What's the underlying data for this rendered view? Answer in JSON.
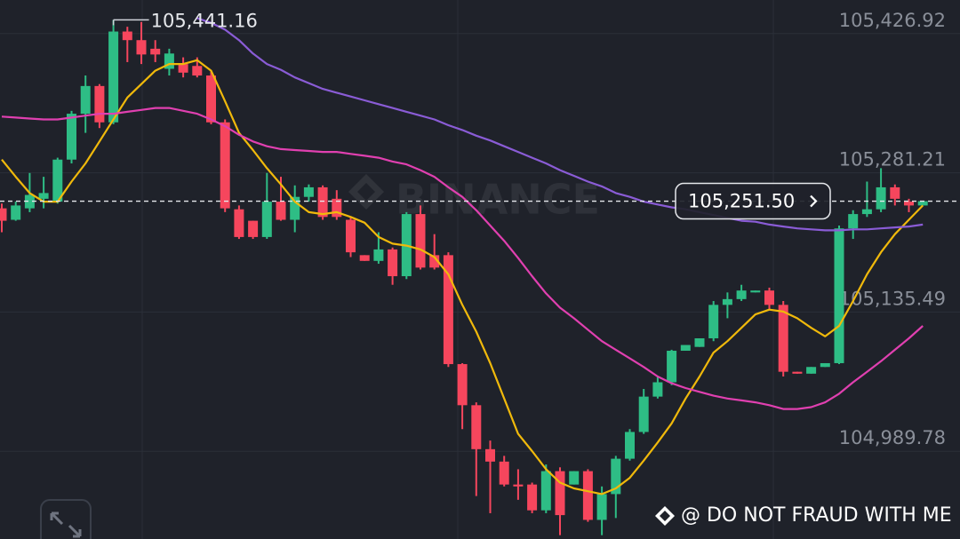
{
  "chart_data": {
    "type": "candlestick",
    "ylim": [
      104898,
      105462
    ],
    "yticks": [
      {
        "value": 105426.92,
        "label": "105,426.92"
      },
      {
        "value": 105281.21,
        "label": "105,281.21"
      },
      {
        "value": 105135.49,
        "label": "105,135.49"
      },
      {
        "value": 104989.78,
        "label": "104,989.78"
      }
    ],
    "grid": true,
    "up_color": "#2ebd85",
    "down_color": "#f6465d",
    "ohlc": {
      "open": [
        105244,
        105232,
        105244,
        105254,
        105251,
        105295,
        105343,
        105372,
        105334,
        105429,
        105420,
        105411,
        105390,
        105395,
        105393,
        105383,
        105334,
        105243,
        105231,
        105214,
        105251,
        105232,
        105256,
        105266,
        105254,
        105232,
        105195,
        105189,
        105201,
        105173,
        105238,
        105195,
        105195,
        105081,
        105038,
        104992,
        104979,
        104955,
        104955,
        104928,
        104969,
        104955,
        104969,
        104918,
        104945,
        104982,
        105010,
        105047,
        105062,
        105095,
        105099,
        105108,
        105143,
        105149,
        105156,
        105158,
        105143,
        105073,
        105071,
        105078,
        105082,
        105223,
        105238,
        105243,
        105266,
        105251,
        105247
      ],
      "high": [
        105249,
        105251,
        105281,
        105277,
        105297,
        105346,
        105383,
        105374,
        105441.16,
        105434,
        105439,
        105420,
        105411,
        105402,
        105402,
        105388,
        105337,
        105247,
        105231,
        105281,
        105277,
        105268,
        105269,
        105268,
        105263,
        105235,
        105195,
        105219,
        105203,
        105240,
        105247,
        105217,
        105198,
        105082,
        105041,
        105001,
        104985,
        104971,
        104957,
        104976,
        104973,
        104969,
        104971,
        104953,
        104985,
        105013,
        105055,
        105068,
        105096,
        105101,
        105108,
        105147,
        105156,
        105164,
        105158,
        105161,
        105147,
        105073,
        105078,
        105082,
        105226,
        105242,
        105272,
        105286,
        105269,
        105254,
        105251.5
      ],
      "low": [
        105219,
        105231,
        105240,
        105244,
        105249,
        105291,
        105323,
        105328,
        105332,
        105397,
        105395,
        105397,
        105383,
        105381,
        105381,
        105332,
        105240,
        105212,
        105212,
        105212,
        105231,
        105219,
        105251,
        105232,
        105232,
        105193,
        105189,
        105186,
        105164,
        105170,
        105180,
        105180,
        105078,
        105013,
        104943,
        104925,
        104953,
        104939,
        104925,
        104925,
        104902,
        104955,
        104916,
        104902,
        104920,
        104980,
        105008,
        105045,
        105059,
        105095,
        105099,
        105105,
        105129,
        105147,
        105156,
        105138,
        105068,
        105071,
        105071,
        105078,
        105081,
        105212,
        105235,
        105240,
        105247,
        105240,
        105247
      ],
      "close": [
        105231,
        105247,
        105258,
        105260,
        105295,
        105343,
        105372,
        105334,
        105429,
        105420,
        105405,
        105405,
        105406,
        105386,
        105383,
        105334,
        105244,
        105214,
        105214,
        105251,
        105232,
        105256,
        105266,
        105235,
        105235,
        105198,
        105189,
        105201,
        105173,
        105238,
        105182,
        105182,
        105081,
        105038,
        104992,
        104979,
        104955,
        104953,
        104928,
        104969,
        104923,
        104969,
        104918,
        104945,
        104982,
        105010,
        105047,
        105062,
        105095,
        105101,
        105108,
        105143,
        105149,
        105158,
        105158,
        105143,
        105073,
        105071,
        105078,
        105082,
        105223,
        105238,
        105243,
        105266,
        105254,
        105247,
        105251.5
      ]
    },
    "lines": [
      {
        "color": "#f0b90b",
        "values": [
          105295,
          105277,
          105260,
          105251,
          105251,
          105272,
          105291,
          105314,
          105337,
          105360,
          105374,
          105388,
          105395,
          105395,
          105399,
          105388,
          105356,
          105323,
          105305,
          105286,
          105269,
          105251,
          105240,
          105238,
          105240,
          105235,
          105229,
          105214,
          105207,
          105205,
          105201,
          105193,
          105175,
          105143,
          105115,
          105082,
          105045,
          105008,
          104990,
          104971,
          104957,
          104951,
          104948,
          104945,
          104951,
          104962,
          104980,
          104999,
          105019,
          105045,
          105068,
          105093,
          105105,
          105119,
          105133,
          105138,
          105136,
          105129,
          105119,
          105110,
          105121,
          105147,
          105175,
          105198,
          105217,
          105232,
          105247
        ]
      },
      {
        "color": "#e040b0",
        "values": [
          105340,
          105339,
          105338,
          105337,
          105337,
          105339,
          105341,
          105343,
          105343,
          105345,
          105347,
          105349,
          105349,
          105346,
          105343,
          105337,
          105330,
          105321,
          105314,
          105309,
          105306,
          105305,
          105304,
          105303,
          105303,
          105301,
          105299,
          105297,
          105293,
          105290,
          105284,
          105277,
          105266,
          105256,
          105242,
          105226,
          105210,
          105192,
          105173,
          105155,
          105140,
          105129,
          105117,
          105105,
          105096,
          105087,
          105078,
          105068,
          105061,
          105056,
          105052,
          105048,
          105045,
          105043,
          105041,
          105038,
          105034,
          105034,
          105036,
          105041,
          105050,
          105062,
          105073,
          105084,
          105096,
          105108,
          105121
        ]
      },
      {
        "color": "#8a5cd6",
        "values": [
          null,
          null,
          null,
          null,
          null,
          null,
          null,
          null,
          null,
          null,
          null,
          null,
          null,
          null,
          105443,
          105438,
          105431,
          105420,
          105406,
          105395,
          105389,
          105381,
          105375,
          105369,
          105365,
          105361,
          105357,
          105353,
          105349,
          105345,
          105341,
          105337,
          105331,
          105326,
          105320,
          105315,
          105309,
          105303,
          105297,
          105291,
          105284,
          105278,
          105272,
          105267,
          105260,
          105256,
          105251,
          105248,
          105245,
          105243,
          105240,
          105237,
          105234,
          105231,
          105230,
          105227,
          105225,
          105223,
          105222,
          105221,
          105221,
          105222,
          105222,
          105223,
          105224,
          105225,
          105227
        ]
      }
    ],
    "high_marker": {
      "value": 105441.16,
      "label": "105,441.16"
    },
    "last_price": {
      "value": 105251.5,
      "label": "105,251.50"
    },
    "watermark": "BINANCE",
    "credit": "@ DO NOT FRAUD WITH ME"
  }
}
